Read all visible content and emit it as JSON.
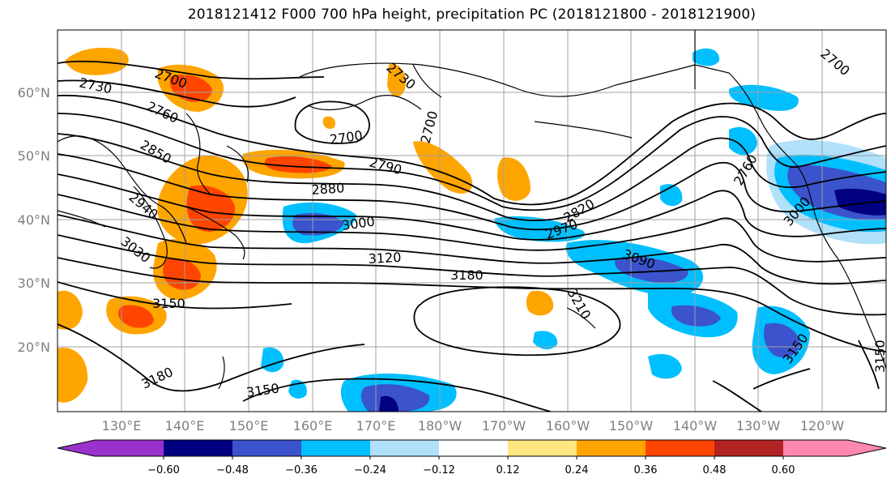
{
  "title": "2018121412 F000 700 hPa height, precipitation PC (2018121800 - 2018121900)",
  "lat_labels": [
    "60°N",
    "50°N",
    "40°N",
    "30°N",
    "20°N"
  ],
  "lon_labels": [
    "130°E",
    "140°E",
    "150°E",
    "160°E",
    "170°E",
    "180°W",
    "170°W",
    "160°W",
    "150°W",
    "140°W",
    "130°W",
    "120°W"
  ],
  "contour_labels": [
    {
      "text": "2700"
    },
    {
      "text": "2730"
    },
    {
      "text": "2760"
    },
    {
      "text": "2850"
    },
    {
      "text": "2940"
    },
    {
      "text": "3030"
    },
    {
      "text": "3150"
    },
    {
      "text": "3180"
    },
    {
      "text": "3150"
    },
    {
      "text": "2730"
    },
    {
      "text": "2700"
    },
    {
      "text": "2700"
    },
    {
      "text": "2790"
    },
    {
      "text": "2880"
    },
    {
      "text": "3000"
    },
    {
      "text": "3120"
    },
    {
      "text": "3180"
    },
    {
      "text": "3210"
    },
    {
      "text": "2820"
    },
    {
      "text": "2970"
    },
    {
      "text": "3090"
    },
    {
      "text": "2760"
    },
    {
      "text": "3000"
    },
    {
      "text": "2700"
    },
    {
      "text": "3150"
    },
    {
      "text": "3150"
    }
  ],
  "colorbar": {
    "ticks": [
      "−0.60",
      "−0.48",
      "−0.36",
      "−0.24",
      "−0.12",
      "0.12",
      "0.24",
      "0.36",
      "0.48",
      "0.60"
    ],
    "colors": [
      "#9932cc",
      "#000080",
      "#3b53cc",
      "#00bfff",
      "#b0e0fa",
      "#ffffff",
      "#ffe680",
      "#ffa500",
      "#ff4500",
      "#b22222",
      "#ff88b0"
    ]
  },
  "colors": {
    "contour": "#000000",
    "grid": "#a0a0a0",
    "coast": "#000000"
  }
}
